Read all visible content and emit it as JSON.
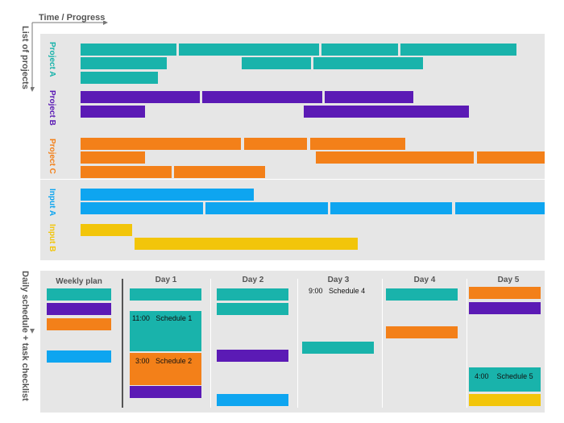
{
  "colors": {
    "teal": "#19b3ab",
    "purple": "#5b1ab5",
    "orange": "#f38019",
    "blue": "#0ea5f0",
    "yellow": "#f2c50a",
    "panel": "#e6e6e6"
  },
  "axes": {
    "horizontal_label": "Time / Progress",
    "vertical_label": "List of projects",
    "schedule_label": "Daily schedule + task checklist"
  },
  "projects": [
    {
      "label": "Project A",
      "color": "#19b3ab"
    },
    {
      "label": "Project B",
      "color": "#5b1ab5"
    },
    {
      "label": "Project C",
      "color": "#f38019"
    },
    {
      "label": "Input A",
      "color": "#0ea5f0"
    },
    {
      "label": "Input B",
      "color": "#f2c50a"
    }
  ],
  "schedule": {
    "columns": [
      "Weekly plan",
      "Day 1",
      "Day 2",
      "Day 3",
      "Day 4",
      "Day 5"
    ],
    "entries": [
      {
        "time": "11:00",
        "title": "Schedule 1"
      },
      {
        "time": "3:00",
        "title": "Schedule 2"
      },
      {
        "time": "9:00",
        "title": "Schedule 4"
      },
      {
        "time": "4:00",
        "title": "Schedule 5"
      }
    ]
  }
}
